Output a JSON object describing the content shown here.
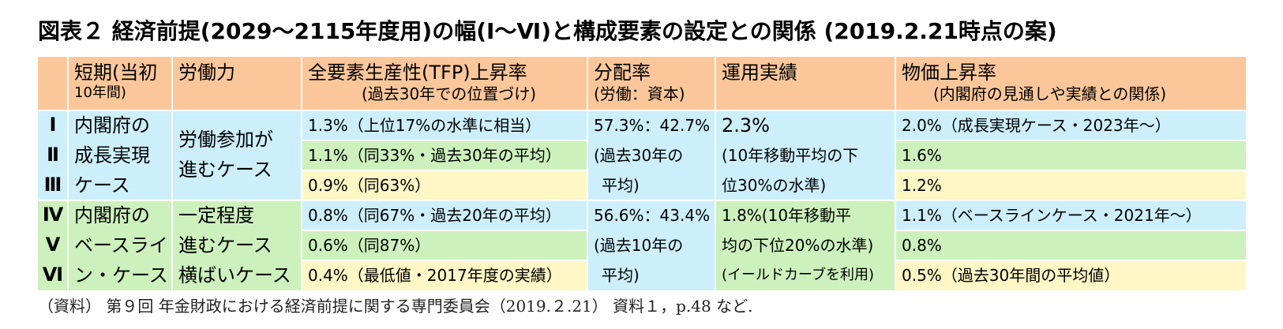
{
  "title": "図表２ 経済前提(2029～2115年度用)の幅(Ⅰ～Ⅵ)と構成要素の設定との関係 (2019.2.21時点の案)",
  "header": {
    "col1_line1": "短期(当初",
    "col1_line2": "10年間)",
    "col2": "労働力",
    "col3_line1": "全要素生産性(TFP)上昇率",
    "col3_line2": "(過去30年での位置づけ)",
    "col4_line1": "分配率",
    "col4_line2": "(労働：資本)",
    "col5": "運用実績",
    "col6_line1": "物価上昇率",
    "col6_line2": "(内閣府の見通しや実績との関係)"
  },
  "roman": [
    "Ⅰ",
    "Ⅱ",
    "Ⅲ",
    "Ⅳ",
    "Ⅴ",
    "Ⅵ"
  ],
  "short_term": {
    "group1": [
      "内閣府の",
      "成長実現",
      "ケース"
    ],
    "group2": [
      "内閣府の",
      "ベースライ",
      "ン・ケース"
    ]
  },
  "labor": {
    "group1": [
      "労働参加が",
      "進むケース"
    ],
    "group2": [
      "一定程度",
      "進むケース",
      "横ばいケース"
    ]
  },
  "tfp": [
    "1.3%（上位17%の水準に相当）",
    "1.1%（同33%・過去30年の平均）",
    "0.9%（同63%）",
    "0.8%（同67%・過去20年の平均）",
    "0.6%（同87%）",
    "0.4%（最低値・2017年度の実績）"
  ],
  "distribution": {
    "group1": [
      "57.3%：42.7%",
      "(過去30年の",
      "平均)"
    ],
    "group2": [
      "56.6%：43.4%",
      "(過去10年の",
      "平均)"
    ]
  },
  "investment": {
    "group1": [
      "2.3%",
      "(10年移動平均の下",
      "位30%の水準)"
    ],
    "group2": [
      "1.8%(10年移動平",
      "均の下位20%の水準)",
      "(イールドカーブを利用)"
    ]
  },
  "inflation": [
    "2.0%（成長実現ケース・2023年～）",
    "1.6%",
    "1.2%",
    "1.1%（ベースラインケース・2021年～）",
    "0.8%",
    "0.5%（過去30年間の平均値）"
  ],
  "source": "（資料） 第９回 年金財政における経済前提に関する専門委員会（2019.２.21） 資料１，p.48 など.",
  "colors": {
    "header": "#fbc79a",
    "blue": "#cdeffb",
    "green": "#cdf1bd",
    "yellow": "#fff7c6"
  }
}
